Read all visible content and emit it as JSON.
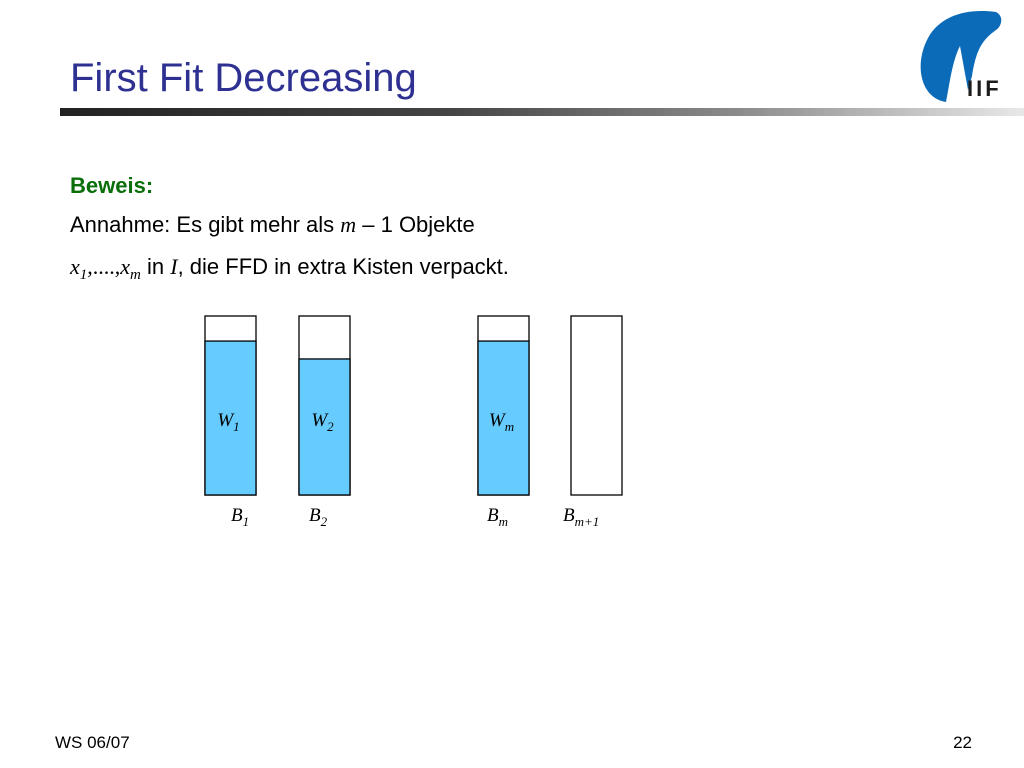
{
  "slide": {
    "title": "First Fit Decreasing",
    "logo_text": "IIF",
    "heading": "Beweis:",
    "line1": {
      "prefix": "Annahme: Es gibt mehr als ",
      "var": "m",
      "suffix": " – 1 Objekte"
    },
    "line2": {
      "x_first": "x",
      "x_first_sub": "1",
      "dots": ",....,",
      "x_last": "x",
      "x_last_sub": "m",
      "in": " in ",
      "set": "I",
      "rest": ", die FFD in extra Kisten verpackt."
    }
  },
  "diagram": {
    "fill_color": "#66ccff",
    "bins": [
      {
        "fill_label": "W",
        "fill_sub": "1",
        "bin_label": "B",
        "bin_sub": "1",
        "fill_level": 0.86
      },
      {
        "fill_label": "W",
        "fill_sub": "2",
        "bin_label": "B",
        "bin_sub": "2",
        "fill_level": 0.76
      },
      {
        "fill_label": "W",
        "fill_sub": "m",
        "bin_label": "B",
        "bin_sub": "m",
        "fill_level": 0.86
      },
      {
        "fill_label": "",
        "fill_sub": "",
        "bin_label": "B",
        "bin_sub": "m+1",
        "fill_level": 0
      }
    ]
  },
  "footer": {
    "left": "WS 06/07",
    "right": "22"
  }
}
